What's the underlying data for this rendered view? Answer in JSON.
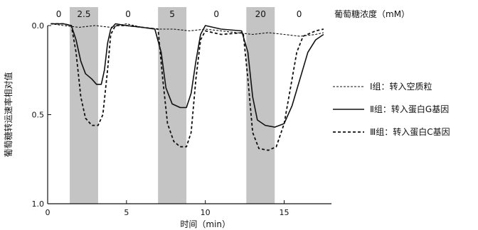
{
  "chart_data": {
    "type": "line",
    "title": "",
    "conc_axis_label": "葡萄糖浓度（mM）",
    "xlabel": "时间（min）",
    "ylabel": "葡萄糖转运速率相对值",
    "xlim": [
      0,
      18
    ],
    "ylim": [
      0,
      1.0
    ],
    "y_inverted": true,
    "x_ticks": [
      "0",
      "5",
      "10",
      "15"
    ],
    "y_ticks": [
      "0.0",
      "0.5",
      "1.0"
    ],
    "grid": false,
    "legend_position": "right",
    "concentration_segments": [
      {
        "label": "0",
        "x0": 0,
        "x1": 1.4,
        "shaded": false
      },
      {
        "label": "2.5",
        "x0": 1.4,
        "x1": 3.2,
        "shaded": true
      },
      {
        "label": "0",
        "x0": 3.2,
        "x1": 7.0,
        "shaded": false
      },
      {
        "label": "5",
        "x0": 7.0,
        "x1": 8.8,
        "shaded": true
      },
      {
        "label": "0",
        "x0": 8.8,
        "x1": 12.6,
        "shaded": false
      },
      {
        "label": "20",
        "x0": 12.6,
        "x1": 14.4,
        "shaded": true
      },
      {
        "label": "0",
        "x0": 14.4,
        "x1": 17.5,
        "shaded": false
      }
    ],
    "series": [
      {
        "name": "Ⅰ组：转入空质粒",
        "style": "dashed",
        "points": [
          [
            0.2,
            -0.01
          ],
          [
            1,
            0.0
          ],
          [
            2,
            0.01
          ],
          [
            3,
            0.0
          ],
          [
            4,
            0.01
          ],
          [
            5,
            -0.01
          ],
          [
            6,
            0.01
          ],
          [
            7,
            0.02
          ],
          [
            8,
            0.02
          ],
          [
            9,
            0.03
          ],
          [
            10,
            0.02
          ],
          [
            11,
            0.03
          ],
          [
            12,
            0.04
          ],
          [
            13,
            0.05
          ],
          [
            14,
            0.04
          ],
          [
            15,
            0.05
          ],
          [
            16,
            0.06
          ],
          [
            17,
            0.05
          ],
          [
            17.5,
            0.04
          ]
        ]
      },
      {
        "name": "Ⅱ组：转入蛋白G基因",
        "style": "solid",
        "points": [
          [
            0.2,
            -0.01
          ],
          [
            1,
            -0.01
          ],
          [
            1.5,
            0.0
          ],
          [
            1.8,
            0.08
          ],
          [
            2.1,
            0.2
          ],
          [
            2.4,
            0.27
          ],
          [
            2.8,
            0.3
          ],
          [
            3.1,
            0.33
          ],
          [
            3.4,
            0.33
          ],
          [
            3.6,
            0.25
          ],
          [
            3.8,
            0.1
          ],
          [
            4.0,
            0.02
          ],
          [
            4.3,
            -0.01
          ],
          [
            5,
            0.0
          ],
          [
            6,
            0.01
          ],
          [
            6.8,
            0.02
          ],
          [
            7.2,
            0.15
          ],
          [
            7.5,
            0.35
          ],
          [
            7.9,
            0.44
          ],
          [
            8.4,
            0.46
          ],
          [
            8.8,
            0.46
          ],
          [
            9.1,
            0.38
          ],
          [
            9.4,
            0.2
          ],
          [
            9.7,
            0.05
          ],
          [
            10,
            0.0
          ],
          [
            11,
            0.02
          ],
          [
            12.3,
            0.03
          ],
          [
            12.7,
            0.15
          ],
          [
            13.0,
            0.4
          ],
          [
            13.3,
            0.53
          ],
          [
            13.8,
            0.56
          ],
          [
            14.4,
            0.57
          ],
          [
            15,
            0.55
          ],
          [
            15.5,
            0.45
          ],
          [
            16,
            0.3
          ],
          [
            16.5,
            0.15
          ],
          [
            17,
            0.08
          ],
          [
            17.5,
            0.05
          ]
        ]
      },
      {
        "name": "Ⅲ组：转入蛋白C基因",
        "style": "dotted",
        "points": [
          [
            0.2,
            -0.01
          ],
          [
            1,
            -0.01
          ],
          [
            1.5,
            0.0
          ],
          [
            1.8,
            0.15
          ],
          [
            2.1,
            0.4
          ],
          [
            2.4,
            0.52
          ],
          [
            2.8,
            0.56
          ],
          [
            3.2,
            0.56
          ],
          [
            3.5,
            0.5
          ],
          [
            3.8,
            0.25
          ],
          [
            4.0,
            0.05
          ],
          [
            4.3,
            0.0
          ],
          [
            5,
            0.0
          ],
          [
            6,
            0.01
          ],
          [
            7.0,
            0.02
          ],
          [
            7.3,
            0.3
          ],
          [
            7.6,
            0.55
          ],
          [
            8.0,
            0.65
          ],
          [
            8.4,
            0.68
          ],
          [
            8.8,
            0.68
          ],
          [
            9.1,
            0.6
          ],
          [
            9.4,
            0.3
          ],
          [
            9.7,
            0.08
          ],
          [
            10,
            0.03
          ],
          [
            11,
            0.05
          ],
          [
            12.4,
            0.04
          ],
          [
            12.7,
            0.3
          ],
          [
            13.0,
            0.6
          ],
          [
            13.4,
            0.69
          ],
          [
            14,
            0.7
          ],
          [
            14.5,
            0.68
          ],
          [
            15,
            0.55
          ],
          [
            15.5,
            0.3
          ],
          [
            15.8,
            0.15
          ],
          [
            16.2,
            0.06
          ],
          [
            17,
            0.03
          ],
          [
            17.5,
            0.02
          ]
        ]
      }
    ]
  }
}
